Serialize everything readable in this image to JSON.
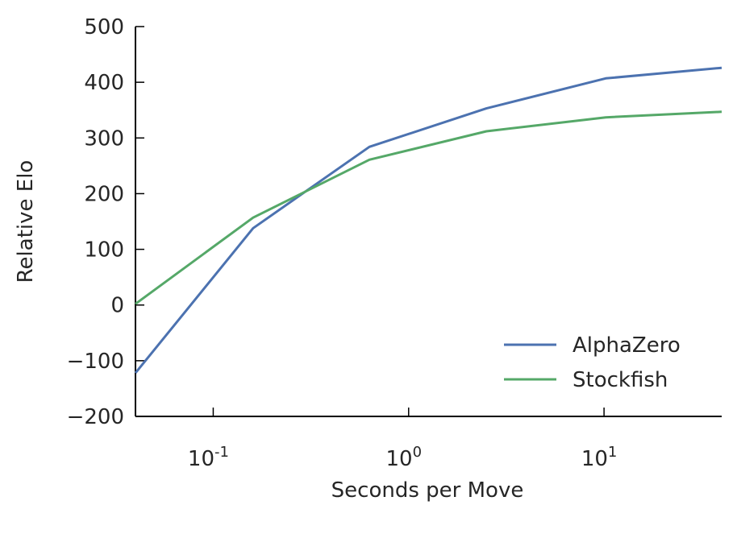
{
  "chart_data": {
    "type": "line",
    "xlabel": "Seconds per Move",
    "ylabel": "Relative Elo",
    "x_scale": "log",
    "xlim": [
      0.04,
      40
    ],
    "ylim": [
      -200,
      500
    ],
    "x_ticks": [
      {
        "base": "10",
        "exp": "-1",
        "value": 0.1
      },
      {
        "base": "10",
        "exp": "0",
        "value": 1
      },
      {
        "base": "10",
        "exp": "1",
        "value": 10
      }
    ],
    "y_ticks": [
      "500",
      "400",
      "300",
      "200",
      "100",
      "0",
      "−100",
      "−200"
    ],
    "y_tick_values": [
      500,
      400,
      300,
      200,
      100,
      0,
      -100,
      -200
    ],
    "grid": false,
    "legend_position": "bottom-right",
    "series": [
      {
        "name": "AlphaZero",
        "color": "#4c72b0",
        "x": [
          0.04,
          0.16,
          0.63,
          2.5,
          10.2,
          40
        ],
        "y": [
          -122,
          138,
          284,
          353,
          407,
          426
        ]
      },
      {
        "name": "Stockfish",
        "color": "#55a868",
        "x": [
          0.04,
          0.16,
          0.63,
          2.5,
          10.2,
          40
        ],
        "y": [
          2,
          157,
          261,
          312,
          337,
          347
        ]
      }
    ]
  }
}
